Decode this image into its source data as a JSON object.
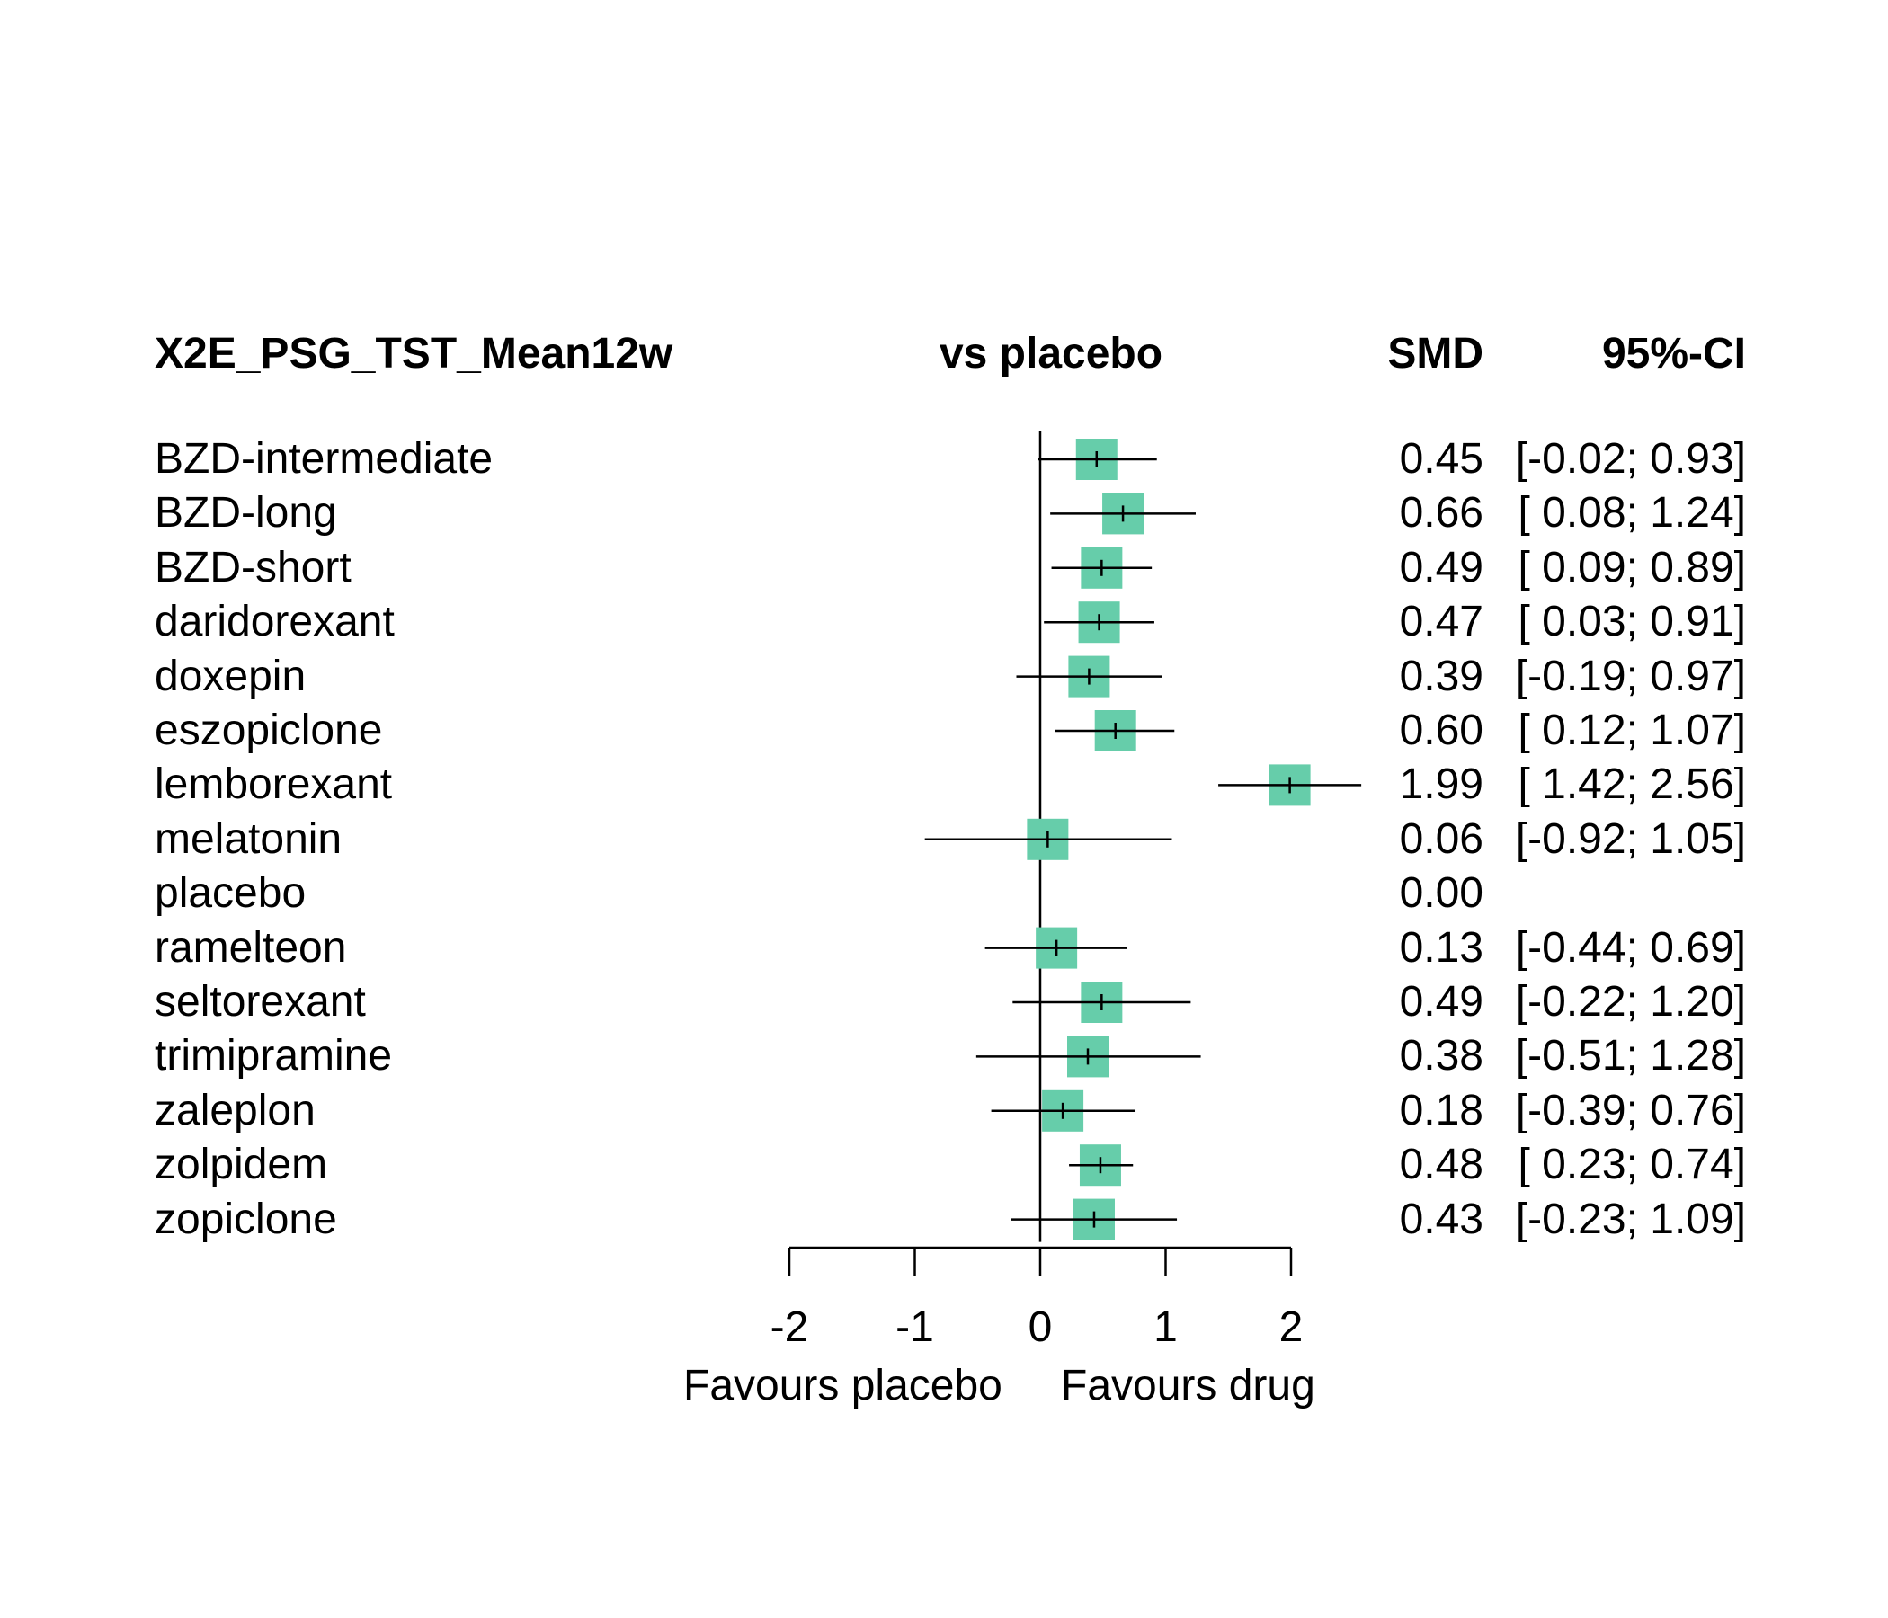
{
  "header": {
    "outcome": "X2E_PSG_TST_Mean12w",
    "comparison": "vs placebo",
    "smd_col": "SMD",
    "ci_col": "95%-CI"
  },
  "axis": {
    "favours_left": "Favours placebo",
    "favours_right": "Favours drug"
  },
  "colors": {
    "box": "#66CDAA",
    "line": "#000000"
  },
  "chart_data": {
    "type": "forest",
    "title": "X2E_PSG_TST_Mean12w",
    "comparison": "vs placebo",
    "measure": "SMD",
    "ci_label": "95%-CI",
    "xlim": [
      -2,
      2
    ],
    "xticks": [
      -2,
      -1,
      0,
      1,
      2
    ],
    "xtick_labels": [
      "-2",
      "-1",
      "0",
      "1",
      "2"
    ],
    "reference_line": 0,
    "xlabel_left": "Favours placebo",
    "xlabel_right": "Favours drug",
    "rows": [
      {
        "label": "BZD-intermediate",
        "smd": 0.45,
        "lower": -0.02,
        "upper": 0.93,
        "smd_text": "0.45",
        "ci_text": "[-0.02; 0.93]"
      },
      {
        "label": "BZD-long",
        "smd": 0.66,
        "lower": 0.08,
        "upper": 1.24,
        "smd_text": "0.66",
        "ci_text": "[ 0.08; 1.24]"
      },
      {
        "label": "BZD-short",
        "smd": 0.49,
        "lower": 0.09,
        "upper": 0.89,
        "smd_text": "0.49",
        "ci_text": "[ 0.09; 0.89]"
      },
      {
        "label": "daridorexant",
        "smd": 0.47,
        "lower": 0.03,
        "upper": 0.91,
        "smd_text": "0.47",
        "ci_text": "[ 0.03; 0.91]"
      },
      {
        "label": "doxepin",
        "smd": 0.39,
        "lower": -0.19,
        "upper": 0.97,
        "smd_text": "0.39",
        "ci_text": "[-0.19; 0.97]"
      },
      {
        "label": "eszopiclone",
        "smd": 0.6,
        "lower": 0.12,
        "upper": 1.07,
        "smd_text": "0.60",
        "ci_text": "[ 0.12; 1.07]"
      },
      {
        "label": "lemborexant",
        "smd": 1.99,
        "lower": 1.42,
        "upper": 2.56,
        "smd_text": "1.99",
        "ci_text": "[ 1.42; 2.56]"
      },
      {
        "label": "melatonin",
        "smd": 0.06,
        "lower": -0.92,
        "upper": 1.05,
        "smd_text": "0.06",
        "ci_text": "[-0.92; 1.05]"
      },
      {
        "label": "placebo",
        "smd": 0.0,
        "lower": null,
        "upper": null,
        "smd_text": "0.00",
        "ci_text": ""
      },
      {
        "label": "ramelteon",
        "smd": 0.13,
        "lower": -0.44,
        "upper": 0.69,
        "smd_text": "0.13",
        "ci_text": "[-0.44; 0.69]"
      },
      {
        "label": "seltorexant",
        "smd": 0.49,
        "lower": -0.22,
        "upper": 1.2,
        "smd_text": "0.49",
        "ci_text": "[-0.22; 1.20]"
      },
      {
        "label": "trimipramine",
        "smd": 0.38,
        "lower": -0.51,
        "upper": 1.28,
        "smd_text": "0.38",
        "ci_text": "[-0.51; 1.28]"
      },
      {
        "label": "zaleplon",
        "smd": 0.18,
        "lower": -0.39,
        "upper": 0.76,
        "smd_text": "0.18",
        "ci_text": "[-0.39; 0.76]"
      },
      {
        "label": "zolpidem",
        "smd": 0.48,
        "lower": 0.23,
        "upper": 0.74,
        "smd_text": "0.48",
        "ci_text": "[ 0.23; 0.74]"
      },
      {
        "label": "zopiclone",
        "smd": 0.43,
        "lower": -0.23,
        "upper": 1.09,
        "smd_text": "0.43",
        "ci_text": "[-0.23; 1.09]"
      }
    ]
  }
}
